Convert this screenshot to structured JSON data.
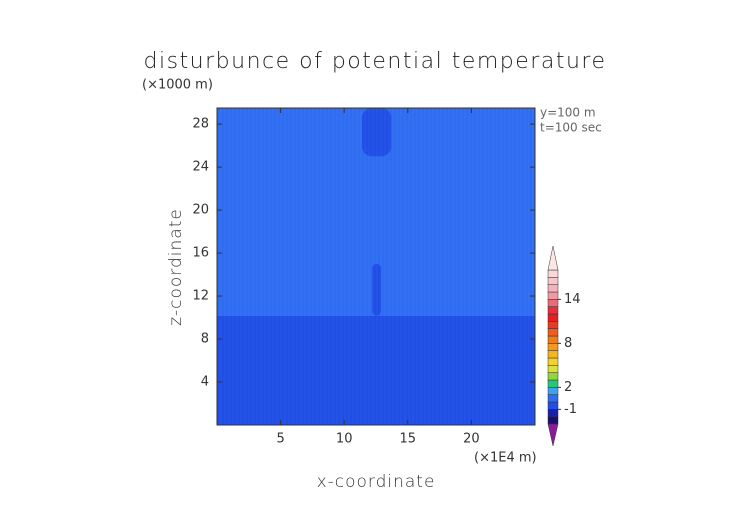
{
  "chart_data": {
    "type": "contour",
    "title": "disturbunce of potential temperature",
    "x_label": "x-coordinate",
    "y_label": "z-coordinate",
    "x_unit": "(×1E4 m)",
    "y_unit": "(×1000 m)",
    "annotations": [
      "y=100 m",
      "t=100 sec"
    ],
    "xlim": [
      0,
      25
    ],
    "ylim": [
      0,
      29.5
    ],
    "xticks": [
      5,
      10,
      15,
      20
    ],
    "yticks": [
      4,
      8,
      12,
      16,
      20,
      24,
      28
    ],
    "regions": [
      {
        "x": [
          0,
          25
        ],
        "z": [
          0,
          10.2
        ],
        "value": -0.5
      },
      {
        "x": [
          0,
          25
        ],
        "z": [
          10.2,
          29.5
        ],
        "value": 0.5
      },
      {
        "x": [
          12.2,
          12.9
        ],
        "z": [
          10.2,
          15
        ],
        "value": -0.5
      },
      {
        "x": [
          11.4,
          13.7
        ],
        "z": [
          25,
          29.5
        ],
        "value": -0.5
      }
    ],
    "colorbar": {
      "levels": [
        -3,
        -2,
        -1,
        0,
        1,
        2,
        3,
        4,
        5,
        6,
        7,
        8,
        9,
        10,
        11,
        12,
        13,
        14,
        15,
        16,
        17,
        18
      ],
      "colors": [
        "#1a0f6e",
        "#1c1fa8",
        "#1f4fe6",
        "#2e6cf2",
        "#3fa0f5",
        "#23c87a",
        "#8fd641",
        "#d8e23a",
        "#f5d22b",
        "#f5b51f",
        "#f39a1c",
        "#f07d1a",
        "#ec5e1c",
        "#e83a20",
        "#e51f24",
        "#e8303c",
        "#ee6a78",
        "#f29aa4",
        "#f5b2b8",
        "#f7c6c8",
        "#f9d8d8"
      ],
      "extend_colors": [
        "#8a1a9a",
        "#fbe6e2"
      ],
      "ticks": [
        -1,
        2,
        8,
        14
      ]
    }
  }
}
